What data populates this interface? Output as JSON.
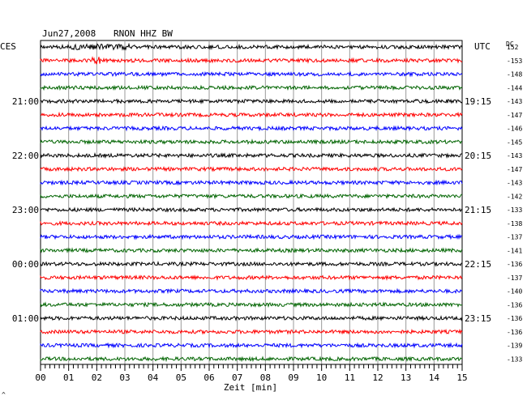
{
  "header": {
    "date": "Jun27,2008",
    "station": "RNON HHZ BW",
    "left_tz": "CES",
    "right_tz": "UTC",
    "dc_label": "DC"
  },
  "left_hour_labels": [
    "21:00",
    "22:00",
    "23:00",
    "00:00",
    "01:00"
  ],
  "right_hour_labels": [
    "19:15",
    "20:15",
    "21:15",
    "22:15",
    "23:15"
  ],
  "dc_values": [
    "152",
    "-153",
    "-148",
    "-144",
    "-143",
    "-147",
    "-146",
    "-145",
    "-143",
    "-147",
    "-143",
    "-142",
    "-133",
    "-138",
    "-137",
    "-141",
    "-136",
    "-137",
    "-140",
    "-136",
    "-136",
    "-136",
    "-139",
    "-133"
  ],
  "trace_colors": [
    "#000000",
    "#ff0000",
    "#0000ff",
    "#006400"
  ],
  "x_axis": {
    "tick_labels": [
      "00",
      "01",
      "02",
      "03",
      "04",
      "05",
      "06",
      "07",
      "08",
      "09",
      "10",
      "11",
      "12",
      "13",
      "14",
      "15"
    ],
    "label": "Zeit [min]",
    "range": [
      0,
      15
    ]
  },
  "corner_mark": "^"
}
